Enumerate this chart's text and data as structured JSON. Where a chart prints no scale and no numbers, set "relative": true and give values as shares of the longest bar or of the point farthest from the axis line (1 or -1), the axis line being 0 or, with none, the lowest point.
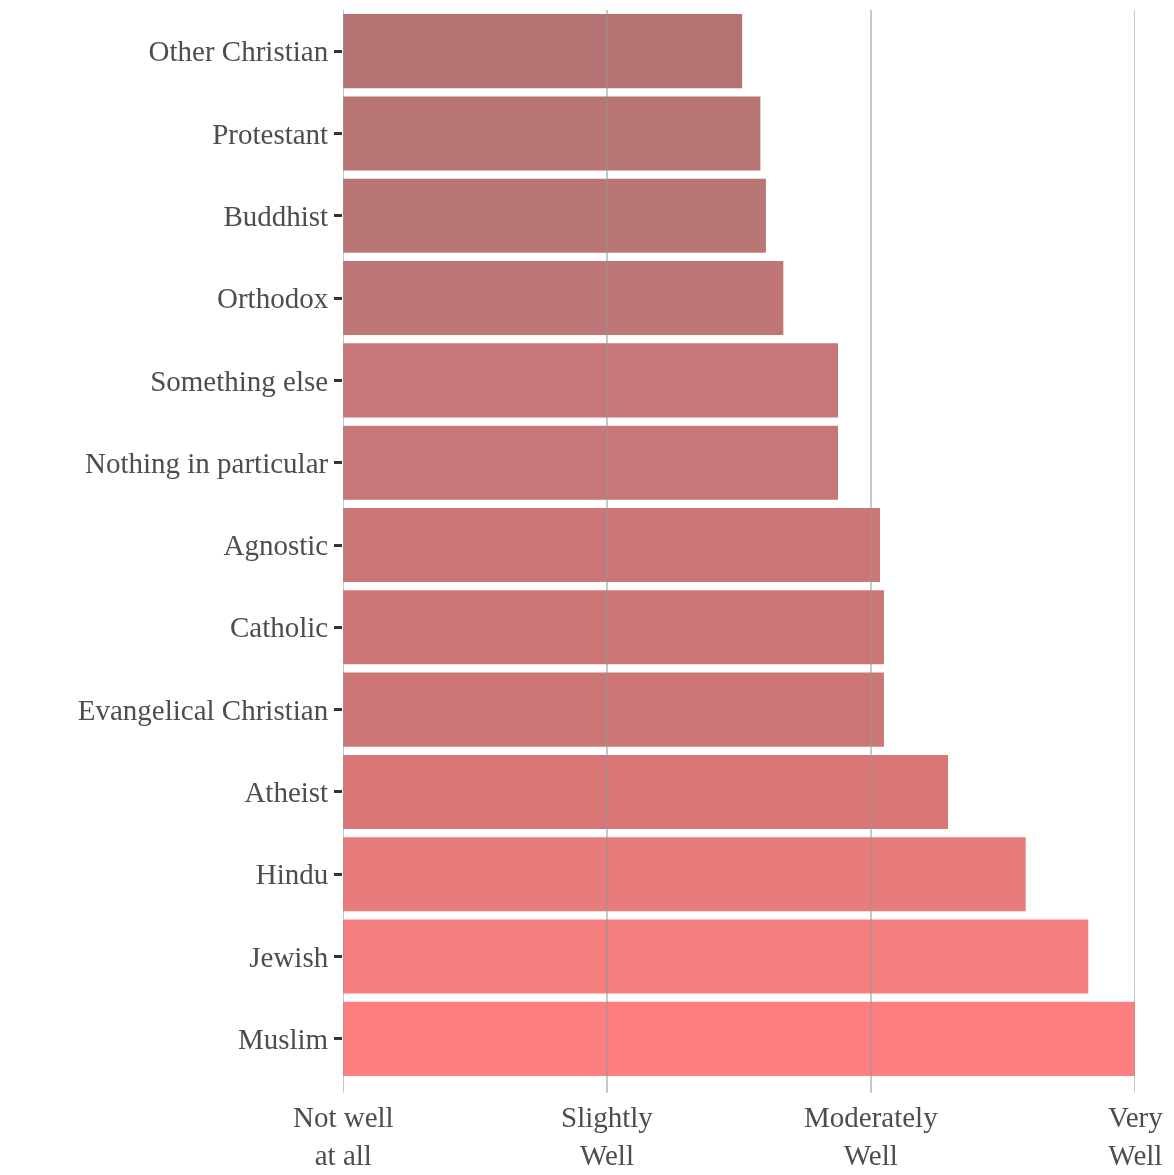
{
  "chart_data": {
    "type": "bar",
    "orientation": "horizontal",
    "relative": true,
    "categories": [
      "Other Christian",
      "Protestant",
      "Buddhist",
      "Orthodox",
      "Something else",
      "Nothing in particular",
      "Agnostic",
      "Catholic",
      "Evangelical Christian",
      "Atheist",
      "Hindu",
      "Jewish",
      "Muslim"
    ],
    "values": [
      0.504,
      0.527,
      0.534,
      0.556,
      0.625,
      0.625,
      0.678,
      0.683,
      0.683,
      0.764,
      0.862,
      0.941,
      1
    ],
    "colors": [
      "#b57272",
      "#b97474",
      "#ba7575",
      "#bf7676",
      "#c77777",
      "#c77777",
      "#cc7777",
      "#cd7676",
      "#cd7676",
      "#d97676",
      "#e87b7b",
      "#f57e7e",
      "#fe7f7f"
    ],
    "ref_lines": [
      {
        "axis": "x",
        "value": 0,
        "label": "Not well\nat all",
        "color": "#969696"
      },
      {
        "axis": "x",
        "value": 0.3333,
        "label": "Slightly\nWell",
        "color": "#969696"
      },
      {
        "axis": "x",
        "value": 0.6667,
        "label": "Moderately\nWell",
        "color": "#969696"
      },
      {
        "axis": "x",
        "value": 1,
        "label": "Very\nWell",
        "color": "#969696"
      }
    ]
  }
}
